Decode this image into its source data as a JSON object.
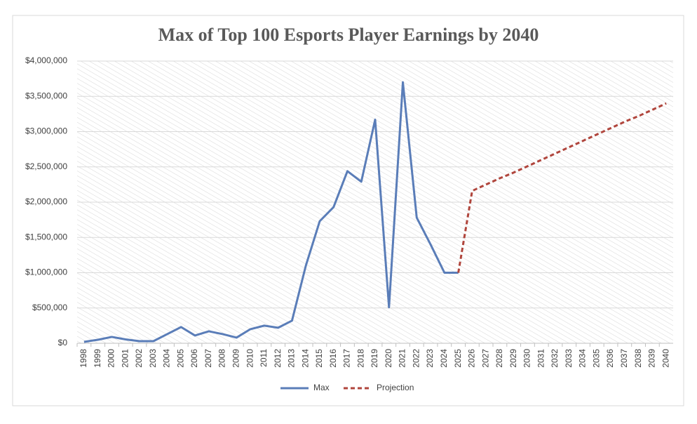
{
  "chart_data": {
    "type": "line",
    "title": "Max of Top 100 Esports Player Earnings by 2040",
    "categories": [
      "1998",
      "1999",
      "2000",
      "2001",
      "2002",
      "2003",
      "2004",
      "2005",
      "2006",
      "2007",
      "2008",
      "2009",
      "2010",
      "2011",
      "2012",
      "2013",
      "2014",
      "2015",
      "2016",
      "2017",
      "2018",
      "2019",
      "2020",
      "2021",
      "2022",
      "2023",
      "2024",
      "2025",
      "2026",
      "2027",
      "2028",
      "2029",
      "2030",
      "2031",
      "2032",
      "2033",
      "2034",
      "2035",
      "2036",
      "2037",
      "2038",
      "2039",
      "2040"
    ],
    "series": [
      {
        "name": "Max",
        "color": "#5a7db8",
        "values": [
          20000,
          50000,
          90000,
          55000,
          30000,
          30000,
          130000,
          230000,
          110000,
          170000,
          130000,
          80000,
          200000,
          250000,
          220000,
          320000,
          1100000,
          1730000,
          1930000,
          2440000,
          2290000,
          3170000,
          510000,
          3700000,
          1780000,
          1400000,
          1000000,
          1000000,
          null,
          null,
          null,
          null,
          null,
          null,
          null,
          null,
          null,
          null,
          null,
          null,
          null,
          null,
          null
        ]
      },
      {
        "name": "Projection",
        "color": "#b0453c",
        "dashed": true,
        "values": [
          null,
          null,
          null,
          null,
          null,
          null,
          null,
          null,
          null,
          null,
          null,
          null,
          null,
          null,
          null,
          null,
          null,
          null,
          null,
          null,
          null,
          null,
          null,
          null,
          null,
          null,
          null,
          1000000,
          2160000,
          2250000,
          2340000,
          2420000,
          2510000,
          2600000,
          2690000,
          2780000,
          2870000,
          2960000,
          3050000,
          3140000,
          3220000,
          3310000,
          3400000
        ]
      }
    ],
    "ylim": [
      0,
      4000000
    ],
    "yticks": [
      {
        "value": 0,
        "label": "$0"
      },
      {
        "value": 500000,
        "label": "$500,000"
      },
      {
        "value": 1000000,
        "label": "$1,000,000"
      },
      {
        "value": 1500000,
        "label": "$1,500,000"
      },
      {
        "value": 2000000,
        "label": "$2,000,000"
      },
      {
        "value": 2500000,
        "label": "$2,500,000"
      },
      {
        "value": 3000000,
        "label": "$3,000,000"
      },
      {
        "value": 3500000,
        "label": "$3,500,000"
      },
      {
        "value": 4000000,
        "label": "$4,000,000"
      }
    ],
    "grid": true
  }
}
